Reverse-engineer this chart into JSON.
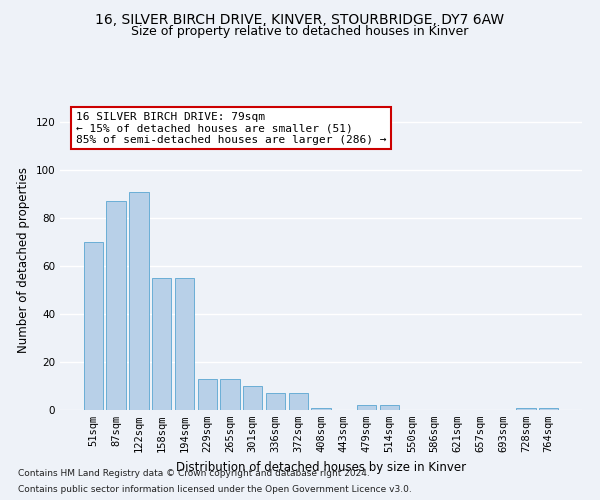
{
  "title_line1": "16, SILVER BIRCH DRIVE, KINVER, STOURBRIDGE, DY7 6AW",
  "title_line2": "Size of property relative to detached houses in Kinver",
  "xlabel": "Distribution of detached houses by size in Kinver",
  "ylabel": "Number of detached properties",
  "categories": [
    "51sqm",
    "87sqm",
    "122sqm",
    "158sqm",
    "194sqm",
    "229sqm",
    "265sqm",
    "301sqm",
    "336sqm",
    "372sqm",
    "408sqm",
    "443sqm",
    "479sqm",
    "514sqm",
    "550sqm",
    "586sqm",
    "621sqm",
    "657sqm",
    "693sqm",
    "728sqm",
    "764sqm"
  ],
  "values": [
    70,
    87,
    91,
    55,
    55,
    13,
    13,
    10,
    7,
    7,
    1,
    0,
    2,
    2,
    0,
    0,
    0,
    0,
    0,
    1,
    1
  ],
  "bar_color": "#b8d0e8",
  "bar_edge_color": "#6aaed6",
  "ylim": [
    0,
    125
  ],
  "yticks": [
    0,
    20,
    40,
    60,
    80,
    100,
    120
  ],
  "annotation_text": "16 SILVER BIRCH DRIVE: 79sqm\n← 15% of detached houses are smaller (51)\n85% of semi-detached houses are larger (286) →",
  "annotation_box_color": "#ffffff",
  "annotation_box_edge": "#cc0000",
  "footer_line1": "Contains HM Land Registry data © Crown copyright and database right 2024.",
  "footer_line2": "Contains public sector information licensed under the Open Government Licence v3.0.",
  "background_color": "#eef2f8",
  "grid_color": "#ffffff",
  "title_fontsize": 10,
  "subtitle_fontsize": 9,
  "axis_label_fontsize": 8.5,
  "tick_fontsize": 7.5,
  "annotation_fontsize": 8,
  "footer_fontsize": 6.5
}
